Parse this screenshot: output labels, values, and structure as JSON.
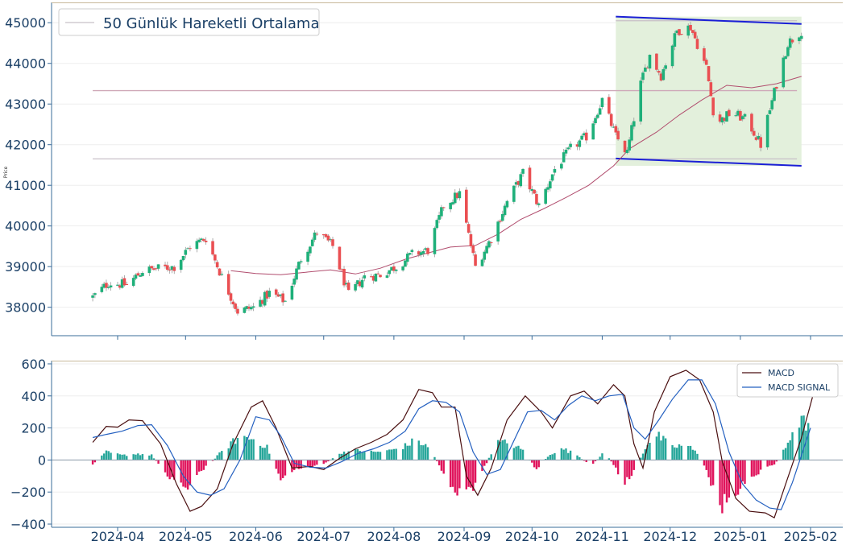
{
  "colors": {
    "up": "#1fb07a",
    "down": "#ea4f52",
    "ma": "#b14d6e",
    "channel": "#1b1fd6",
    "channel_fill": "#e3f0dc",
    "level": "#c8c0c8",
    "macd": "#4a0f10",
    "signal": "#2460c0",
    "hist_pos": "#26a69a",
    "hist_neg": "#e0145c",
    "axis": "#3a6c9a",
    "tick": "#1a3f66"
  },
  "chart_data": [
    {
      "type": "candlestick",
      "title": "",
      "xlabel": "",
      "ylabel": "Price",
      "ylim": [
        37300,
        45500
      ],
      "yticks": [
        "38000",
        "39000",
        "40000",
        "41000",
        "42000",
        "43000",
        "44000",
        "45000"
      ],
      "legend": {
        "position": "top-left",
        "entries": [
          "50 Günlük Hareketli Ortalama"
        ]
      },
      "horizontal_levels": [
        45050,
        43330,
        41650
      ],
      "channel": {
        "start": "2024-11-07",
        "end": "2025-01-28",
        "upper": [
          45150,
          44970
        ],
        "lower": [
          41660,
          41480
        ]
      },
      "ma_50": [
        [
          "2024-05-21",
          38900
        ],
        [
          "2024-06-01",
          38830
        ],
        [
          "2024-06-12",
          38800
        ],
        [
          "2024-06-23",
          38860
        ],
        [
          "2024-07-04",
          38920
        ],
        [
          "2024-07-15",
          38820
        ],
        [
          "2024-07-26",
          38960
        ],
        [
          "2024-08-06",
          39180
        ],
        [
          "2024-08-15",
          39320
        ],
        [
          "2024-08-26",
          39480
        ],
        [
          "2024-09-06",
          39520
        ],
        [
          "2024-09-16",
          39800
        ],
        [
          "2024-09-26",
          40160
        ],
        [
          "2024-10-06",
          40420
        ],
        [
          "2024-10-16",
          40700
        ],
        [
          "2024-10-26",
          41000
        ],
        [
          "2024-11-06",
          41480
        ],
        [
          "2024-11-13",
          41900
        ],
        [
          "2024-11-25",
          42310
        ],
        [
          "2024-12-05",
          42730
        ],
        [
          "2024-12-15",
          43100
        ],
        [
          "2024-12-26",
          43460
        ],
        [
          "2025-01-06",
          43400
        ],
        [
          "2025-01-17",
          43500
        ],
        [
          "2025-01-28",
          43680
        ]
      ],
      "close_anchors": [
        [
          "2024-03-21",
          38250
        ],
        [
          "2024-03-28",
          38600
        ],
        [
          "2024-04-05",
          38550
        ],
        [
          "2024-04-12",
          38900
        ],
        [
          "2024-04-19",
          38950
        ],
        [
          "2024-04-26",
          39000
        ],
        [
          "2024-05-03",
          39500
        ],
        [
          "2024-05-10",
          39700
        ],
        [
          "2024-05-17",
          38750
        ],
        [
          "2024-05-24",
          37900
        ],
        [
          "2024-05-31",
          38000
        ],
        [
          "2024-06-07",
          38350
        ],
        [
          "2024-06-14",
          38150
        ],
        [
          "2024-06-21",
          39200
        ],
        [
          "2024-06-28",
          39850
        ],
        [
          "2024-07-05",
          39500
        ],
        [
          "2024-07-12",
          38300
        ],
        [
          "2024-07-19",
          38750
        ],
        [
          "2024-07-26",
          38800
        ],
        [
          "2024-08-02",
          39000
        ],
        [
          "2024-08-09",
          39300
        ],
        [
          "2024-08-16",
          39400
        ],
        [
          "2024-08-23",
          40500
        ],
        [
          "2024-08-30",
          40800
        ],
        [
          "2024-09-06",
          39000
        ],
        [
          "2024-09-13",
          39700
        ],
        [
          "2024-09-20",
          40600
        ],
        [
          "2024-09-27",
          41300
        ],
        [
          "2024-10-04",
          40500
        ],
        [
          "2024-10-11",
          41400
        ],
        [
          "2024-10-18",
          41900
        ],
        [
          "2024-10-25",
          42200
        ],
        [
          "2024-11-01",
          43100
        ],
        [
          "2024-11-07",
          42200
        ],
        [
          "2024-11-12",
          41800
        ],
        [
          "2024-11-18",
          43500
        ],
        [
          "2024-11-22",
          44200
        ],
        [
          "2024-11-27",
          43700
        ],
        [
          "2024-12-04",
          44800
        ],
        [
          "2024-12-10",
          44900
        ],
        [
          "2024-12-17",
          43900
        ],
        [
          "2024-12-21",
          42500
        ],
        [
          "2024-12-28",
          42800
        ],
        [
          "2025-01-04",
          42600
        ],
        [
          "2025-01-10",
          42000
        ],
        [
          "2025-01-17",
          43500
        ],
        [
          "2025-01-22",
          44500
        ],
        [
          "2025-01-28",
          44800
        ]
      ],
      "xticks": [
        "2024-04",
        "2024-05",
        "2024-06",
        "2024-07",
        "2024-08",
        "2024-09",
        "2024-10",
        "2024-11",
        "2024-12",
        "2025-01",
        "2025-02"
      ]
    },
    {
      "type": "line",
      "title": "",
      "ylim": [
        -420,
        620
      ],
      "yticks": [
        "−400",
        "−200",
        "0",
        "200",
        "400",
        "600"
      ],
      "legend": {
        "position": "top-right"
      },
      "series": [
        {
          "name": "MACD",
          "points": [
            [
              "2024-03-21",
              110
            ],
            [
              "2024-03-27",
              210
            ],
            [
              "2024-04-01",
              205
            ],
            [
              "2024-04-06",
              250
            ],
            [
              "2024-04-12",
              245
            ],
            [
              "2024-04-20",
              100
            ],
            [
              "2024-04-27",
              -150
            ],
            [
              "2024-05-03",
              -320
            ],
            [
              "2024-05-08",
              -290
            ],
            [
              "2024-05-15",
              -180
            ],
            [
              "2024-05-22",
              100
            ],
            [
              "2024-05-30",
              330
            ],
            [
              "2024-06-04",
              370
            ],
            [
              "2024-06-10",
              200
            ],
            [
              "2024-06-17",
              -50
            ],
            [
              "2024-06-25",
              -40
            ],
            [
              "2024-07-01",
              -60
            ],
            [
              "2024-07-08",
              10
            ],
            [
              "2024-07-15",
              70
            ],
            [
              "2024-07-22",
              110
            ],
            [
              "2024-07-29",
              160
            ],
            [
              "2024-08-05",
              250
            ],
            [
              "2024-08-12",
              440
            ],
            [
              "2024-08-18",
              420
            ],
            [
              "2024-08-22",
              330
            ],
            [
              "2024-08-28",
              330
            ],
            [
              "2024-09-02",
              -100
            ],
            [
              "2024-09-07",
              -220
            ],
            [
              "2024-09-13",
              -50
            ],
            [
              "2024-09-20",
              250
            ],
            [
              "2024-09-28",
              400
            ],
            [
              "2024-10-05",
              300
            ],
            [
              "2024-10-10",
              200
            ],
            [
              "2024-10-18",
              400
            ],
            [
              "2024-10-24",
              430
            ],
            [
              "2024-10-30",
              350
            ],
            [
              "2024-11-06",
              470
            ],
            [
              "2024-11-11",
              400
            ],
            [
              "2024-11-15",
              100
            ],
            [
              "2024-11-19",
              -50
            ],
            [
              "2024-11-24",
              300
            ],
            [
              "2024-12-01",
              520
            ],
            [
              "2024-12-08",
              560
            ],
            [
              "2024-12-14",
              500
            ],
            [
              "2024-12-20",
              300
            ],
            [
              "2024-12-24",
              -10
            ],
            [
              "2024-12-30",
              -240
            ],
            [
              "2025-01-05",
              -320
            ],
            [
              "2025-01-12",
              -330
            ],
            [
              "2025-01-16",
              -360
            ],
            [
              "2025-01-21",
              -150
            ],
            [
              "2025-01-28",
              140
            ],
            [
              "2025-02-02",
              400
            ]
          ]
        },
        {
          "name": "MACD SIGNAL",
          "points": [
            [
              "2024-03-21",
              140
            ],
            [
              "2024-03-27",
              160
            ],
            [
              "2024-04-03",
              180
            ],
            [
              "2024-04-10",
              215
            ],
            [
              "2024-04-16",
              220
            ],
            [
              "2024-04-23",
              90
            ],
            [
              "2024-04-30",
              -100
            ],
            [
              "2024-05-06",
              -200
            ],
            [
              "2024-05-12",
              -220
            ],
            [
              "2024-05-18",
              -180
            ],
            [
              "2024-05-25",
              0
            ],
            [
              "2024-06-01",
              270
            ],
            [
              "2024-06-07",
              250
            ],
            [
              "2024-06-12",
              150
            ],
            [
              "2024-06-18",
              -20
            ],
            [
              "2024-06-25",
              -45
            ],
            [
              "2024-07-02",
              -50
            ],
            [
              "2024-07-09",
              -10
            ],
            [
              "2024-07-16",
              40
            ],
            [
              "2024-07-23",
              70
            ],
            [
              "2024-07-30",
              110
            ],
            [
              "2024-08-06",
              180
            ],
            [
              "2024-08-12",
              320
            ],
            [
              "2024-08-18",
              370
            ],
            [
              "2024-08-24",
              360
            ],
            [
              "2024-08-30",
              300
            ],
            [
              "2024-09-05",
              50
            ],
            [
              "2024-09-11",
              -90
            ],
            [
              "2024-09-17",
              -60
            ],
            [
              "2024-09-23",
              120
            ],
            [
              "2024-09-29",
              300
            ],
            [
              "2024-10-05",
              310
            ],
            [
              "2024-10-11",
              250
            ],
            [
              "2024-10-17",
              340
            ],
            [
              "2024-10-23",
              400
            ],
            [
              "2024-10-29",
              370
            ],
            [
              "2024-11-04",
              400
            ],
            [
              "2024-11-10",
              410
            ],
            [
              "2024-11-15",
              200
            ],
            [
              "2024-11-20",
              130
            ],
            [
              "2024-11-26",
              250
            ],
            [
              "2024-12-02",
              380
            ],
            [
              "2024-12-09",
              500
            ],
            [
              "2024-12-15",
              500
            ],
            [
              "2024-12-21",
              350
            ],
            [
              "2024-12-27",
              50
            ],
            [
              "2025-01-02",
              -150
            ],
            [
              "2025-01-08",
              -250
            ],
            [
              "2025-01-14",
              -300
            ],
            [
              "2025-01-19",
              -310
            ],
            [
              "2025-01-24",
              -140
            ],
            [
              "2025-02-01",
              200
            ]
          ]
        }
      ],
      "histogram_anchors": [
        [
          "2024-03-21",
          -30
        ],
        [
          "2024-03-27",
          50
        ],
        [
          "2024-04-03",
          30
        ],
        [
          "2024-04-10",
          40
        ],
        [
          "2024-04-16",
          30
        ],
        [
          "2024-04-20",
          -40
        ],
        [
          "2024-04-25",
          -120
        ],
        [
          "2024-05-01",
          -170
        ],
        [
          "2024-05-06",
          -100
        ],
        [
          "2024-05-12",
          -20
        ],
        [
          "2024-05-18",
          70
        ],
        [
          "2024-05-25",
          150
        ],
        [
          "2024-06-01",
          130
        ],
        [
          "2024-06-06",
          80
        ],
        [
          "2024-06-12",
          -120
        ],
        [
          "2024-06-18",
          -60
        ],
        [
          "2024-06-25",
          -40
        ],
        [
          "2024-07-02",
          -20
        ],
        [
          "2024-07-09",
          50
        ],
        [
          "2024-07-16",
          60
        ],
        [
          "2024-07-23",
          50
        ],
        [
          "2024-07-30",
          60
        ],
        [
          "2024-08-06",
          90
        ],
        [
          "2024-08-11",
          130
        ],
        [
          "2024-08-17",
          70
        ],
        [
          "2024-08-22",
          -60
        ],
        [
          "2024-08-28",
          -200
        ],
        [
          "2024-09-03",
          -210
        ],
        [
          "2024-09-09",
          -80
        ],
        [
          "2024-09-15",
          110
        ],
        [
          "2024-09-21",
          110
        ],
        [
          "2024-09-27",
          60
        ],
        [
          "2024-10-03",
          -60
        ],
        [
          "2024-10-09",
          40
        ],
        [
          "2024-10-15",
          70
        ],
        [
          "2024-10-21",
          30
        ],
        [
          "2024-10-27",
          -40
        ],
        [
          "2024-11-02",
          50
        ],
        [
          "2024-11-06",
          -30
        ],
        [
          "2024-11-10",
          -150
        ],
        [
          "2024-11-15",
          -80
        ],
        [
          "2024-11-21",
          110
        ],
        [
          "2024-11-26",
          150
        ],
        [
          "2024-12-02",
          80
        ],
        [
          "2024-12-08",
          100
        ],
        [
          "2024-12-14",
          30
        ],
        [
          "2024-12-19",
          -150
        ],
        [
          "2024-12-24",
          -290
        ],
        [
          "2024-12-30",
          -200
        ],
        [
          "2025-01-05",
          -140
        ],
        [
          "2025-01-10",
          -60
        ],
        [
          "2025-01-16",
          -30
        ],
        [
          "2025-01-21",
          80
        ],
        [
          "2025-01-26",
          250
        ],
        [
          "2025-01-31",
          230
        ]
      ]
    }
  ]
}
